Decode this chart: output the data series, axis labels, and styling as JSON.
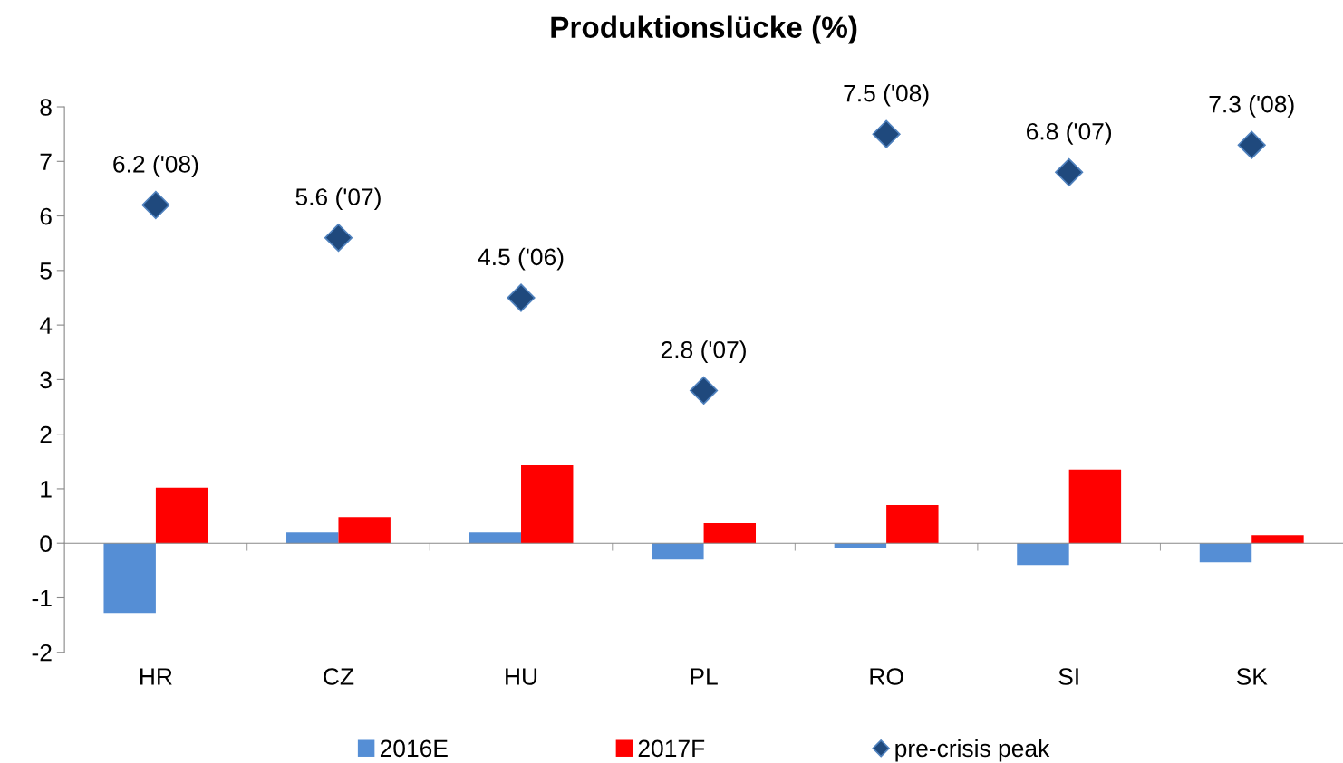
{
  "chart_data": {
    "type": "bar",
    "title": "Produktionslücke (%)",
    "categories": [
      "HR",
      "CZ",
      "HU",
      "PL",
      "RO",
      "SI",
      "SK"
    ],
    "series": [
      {
        "name": "2016E",
        "color": "#558ed5",
        "values": [
          -1.28,
          0.2,
          0.2,
          -0.3,
          -0.08,
          -0.4,
          -0.35
        ]
      },
      {
        "name": "2017F",
        "color": "#ff0000",
        "values": [
          1.02,
          0.48,
          1.43,
          0.37,
          0.7,
          1.35,
          0.15
        ]
      },
      {
        "name": "pre-crisis peak",
        "type": "scatter",
        "color": "#1f497d",
        "marker": "diamond",
        "values": [
          6.2,
          5.6,
          4.5,
          2.8,
          7.5,
          6.8,
          7.3
        ],
        "value_labels": [
          "6.2 ('08)",
          "5.6 ('07)",
          "4.5 ('06)",
          "2.8 ('07)",
          "7.5 ('08)",
          "6.8 ('07)",
          "7.3 ('08)"
        ]
      }
    ],
    "ylim": [
      -2,
      8
    ],
    "yticks": [
      {
        "value": -2,
        "label": "-2"
      },
      {
        "value": -1,
        "label": "-1"
      },
      0,
      1,
      2,
      3,
      4,
      5,
      6,
      7,
      8
    ],
    "legend": "bottom"
  }
}
